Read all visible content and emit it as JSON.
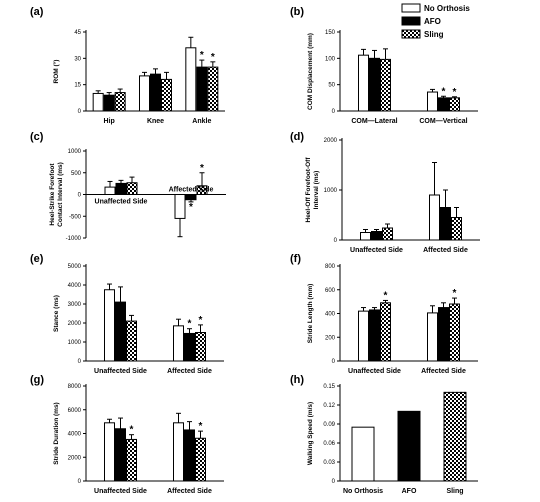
{
  "legend": [
    {
      "name": "No Orthosis",
      "fill": "white"
    },
    {
      "name": "AFO",
      "fill": "black"
    },
    {
      "name": "Sling",
      "fill": "checker"
    }
  ],
  "colors": {
    "bar_outline": "#000000",
    "afo": "#000000",
    "no_orthosis": "#ffffff",
    "sling_pattern": "checkerboard"
  },
  "chart_data": [
    {
      "panel": "(a)",
      "type": "bar",
      "ylabel": "ROM (°)",
      "ylim": [
        0,
        45
      ],
      "yticks": [
        "0",
        "15",
        "30",
        "45"
      ],
      "ytick_values": [
        0,
        15,
        30,
        45
      ],
      "categories": [
        "Hip",
        "Knee",
        "Ankle"
      ],
      "series": [
        {
          "name": "No Orthosis",
          "values": [
            10,
            20,
            36
          ],
          "errors": [
            1.5,
            2,
            6
          ]
        },
        {
          "name": "AFO",
          "values": [
            9,
            21,
            25
          ],
          "errors": [
            1.5,
            3,
            4
          ]
        },
        {
          "name": "Sling",
          "values": [
            10.5,
            18,
            25
          ],
          "errors": [
            2,
            4,
            3
          ]
        }
      ],
      "significance": [
        {
          "category": 2,
          "series": 1
        },
        {
          "category": 2,
          "series": 2
        }
      ]
    },
    {
      "panel": "(b)",
      "type": "bar",
      "ylabel": "COM Displacement (mm)",
      "ylim": [
        0,
        150
      ],
      "yticks": [
        "0",
        "50",
        "100",
        "150"
      ],
      "ytick_values": [
        0,
        50,
        100,
        150
      ],
      "categories": [
        "COM—Lateral",
        "COM—Vertical"
      ],
      "series": [
        {
          "name": "No Orthosis",
          "values": [
            106,
            36
          ],
          "errors": [
            11,
            5
          ]
        },
        {
          "name": "AFO",
          "values": [
            100,
            25
          ],
          "errors": [
            15,
            3
          ]
        },
        {
          "name": "Sling",
          "values": [
            98,
            25
          ],
          "errors": [
            20,
            2
          ]
        }
      ],
      "significance": [
        {
          "category": 1,
          "series": 1
        },
        {
          "category": 1,
          "series": 2
        }
      ]
    },
    {
      "panel": "(c)",
      "type": "bar",
      "ylabel": "Heel-Strike Forefoot Contact Interval (ms)",
      "ylim": [
        -1000,
        1000
      ],
      "yticks": [
        "1000",
        "500",
        "0",
        "-500",
        "-1000"
      ],
      "ytick_values": [
        1000,
        500,
        0,
        -500,
        -1000
      ],
      "categories": [
        "Unaffected Side",
        "Affected Side"
      ],
      "category_label_position": "axis",
      "series": [
        {
          "name": "No Orthosis",
          "values": [
            170,
            -550
          ],
          "errors": [
            130,
            420
          ]
        },
        {
          "name": "AFO",
          "values": [
            255,
            -120
          ],
          "errors": [
            70,
            50
          ]
        },
        {
          "name": "Sling",
          "values": [
            270,
            200
          ],
          "errors": [
            130,
            300
          ]
        }
      ],
      "significance": [
        {
          "category": 1,
          "series": 1
        },
        {
          "category": 1,
          "series": 2
        }
      ]
    },
    {
      "panel": "(d)",
      "type": "bar",
      "ylabel": "Heel-Off Forefoot-Off Interval (ms)",
      "ylim": [
        0,
        2000
      ],
      "yticks": [
        "0",
        "1000",
        "2000"
      ],
      "ytick_values": [
        0,
        1000,
        2000
      ],
      "categories": [
        "Unaffected Side",
        "Affected Side"
      ],
      "series": [
        {
          "name": "No Orthosis",
          "values": [
            150,
            900
          ],
          "errors": [
            60,
            650
          ]
        },
        {
          "name": "AFO",
          "values": [
            170,
            650
          ],
          "errors": [
            40,
            350
          ]
        },
        {
          "name": "Sling",
          "values": [
            240,
            450
          ],
          "errors": [
            80,
            200
          ]
        }
      ],
      "significance": []
    },
    {
      "panel": "(e)",
      "type": "bar",
      "ylabel": "Stance (ms)",
      "ylim": [
        0,
        5000
      ],
      "yticks": [
        "0",
        "1000",
        "2000",
        "3000",
        "4000",
        "5000"
      ],
      "ytick_values": [
        0,
        1000,
        2000,
        3000,
        4000,
        5000
      ],
      "categories": [
        "Unaffected Side",
        "Affected Side"
      ],
      "series": [
        {
          "name": "No Orthosis",
          "values": [
            3750,
            1850
          ],
          "errors": [
            300,
            350
          ]
        },
        {
          "name": "AFO",
          "values": [
            3100,
            1450
          ],
          "errors": [
            800,
            250
          ]
        },
        {
          "name": "Sling",
          "values": [
            2100,
            1500
          ],
          "errors": [
            300,
            400
          ]
        }
      ],
      "significance": [
        {
          "category": 1,
          "series": 1
        },
        {
          "category": 1,
          "series": 2
        }
      ]
    },
    {
      "panel": "(f)",
      "type": "bar",
      "ylabel": "Stride Length (mm)",
      "ylim": [
        0,
        800
      ],
      "yticks": [
        "0",
        "200",
        "400",
        "600",
        "800"
      ],
      "ytick_values": [
        0,
        200,
        400,
        600,
        800
      ],
      "categories": [
        "Unaffected Side",
        "Affected Side"
      ],
      "series": [
        {
          "name": "No Orthosis",
          "values": [
            420,
            405
          ],
          "errors": [
            30,
            60
          ]
        },
        {
          "name": "AFO",
          "values": [
            430,
            450
          ],
          "errors": [
            20,
            40
          ]
        },
        {
          "name": "Sling",
          "values": [
            490,
            480
          ],
          "errors": [
            20,
            50
          ]
        }
      ],
      "significance": [
        {
          "category": 0,
          "series": 2
        },
        {
          "category": 1,
          "series": 2
        }
      ]
    },
    {
      "panel": "(g)",
      "type": "bar",
      "ylabel": "Stride Duration (ms)",
      "ylim": [
        0,
        8000
      ],
      "yticks": [
        "0",
        "2000",
        "4000",
        "6000",
        "8000"
      ],
      "ytick_values": [
        0,
        2000,
        4000,
        6000,
        8000
      ],
      "categories": [
        "Unaffected Side",
        "Affected Side"
      ],
      "series": [
        {
          "name": "No Orthosis",
          "values": [
            4900,
            4900
          ],
          "errors": [
            300,
            800
          ]
        },
        {
          "name": "AFO",
          "values": [
            4400,
            4300
          ],
          "errors": [
            900,
            700
          ]
        },
        {
          "name": "Sling",
          "values": [
            3500,
            3600
          ],
          "errors": [
            400,
            600
          ]
        }
      ],
      "significance": [
        {
          "category": 0,
          "series": 2
        },
        {
          "category": 1,
          "series": 2
        }
      ]
    },
    {
      "panel": "(h)",
      "type": "bar",
      "ylabel": "Walking Speed (m/s)",
      "ylim": [
        0,
        0.15
      ],
      "yticks": [
        "0",
        "0.03",
        "0.06",
        "0.09",
        "0.12",
        "0.15"
      ],
      "ytick_values": [
        0,
        0.03,
        0.06,
        0.09,
        0.12,
        0.15
      ],
      "categories": [
        "No Orthosis",
        "AFO",
        "Sling"
      ],
      "layout": "single",
      "series": [
        {
          "name": "Walking Speed",
          "values": [
            0.085,
            0.11,
            0.14
          ],
          "errors": [
            0,
            0,
            0
          ],
          "fills": [
            "white",
            "black",
            "checker"
          ]
        }
      ],
      "significance": []
    }
  ]
}
